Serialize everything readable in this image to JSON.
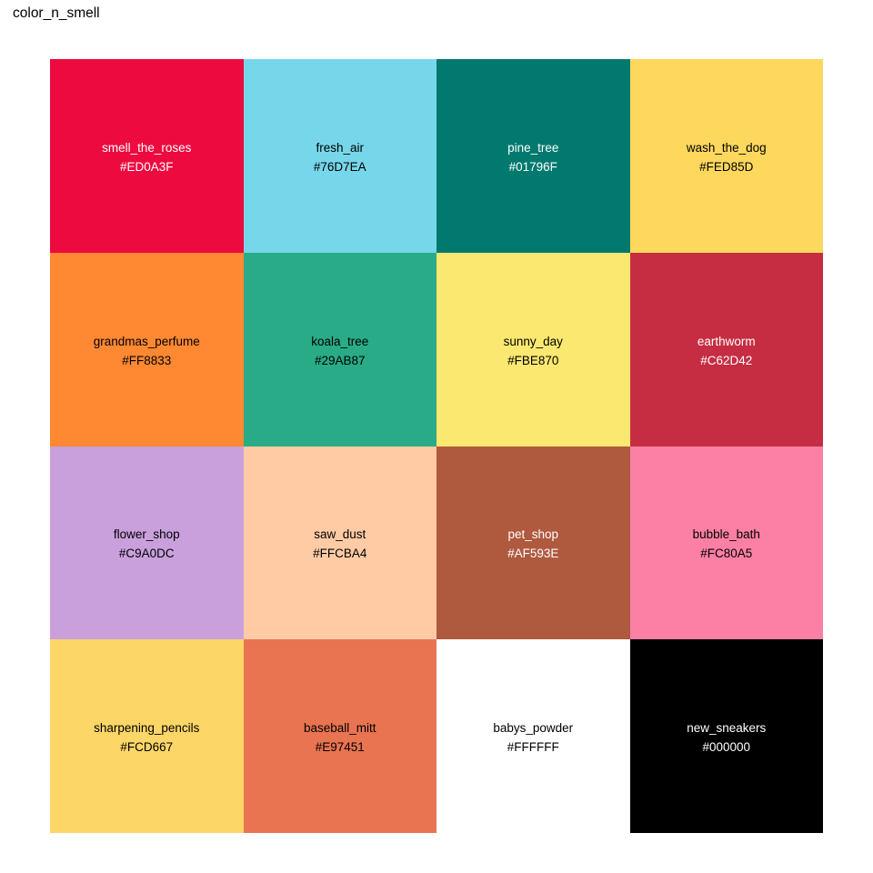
{
  "chart_data": {
    "type": "table",
    "title": "color_n_smell",
    "layout": {
      "rows": 4,
      "cols": 4,
      "legend": "none",
      "grid": "off"
    },
    "background_color": "#FFFFFF",
    "title_color": "#000000",
    "cells": [
      {
        "label": "smell_the_roses",
        "hex": "#ED0A3F",
        "text_color": "#FFFFFF"
      },
      {
        "label": "fresh_air",
        "hex": "#76D7EA",
        "text_color": "#000000"
      },
      {
        "label": "pine_tree",
        "hex": "#01796F",
        "text_color": "#FFFFFF"
      },
      {
        "label": "wash_the_dog",
        "hex": "#FED85D",
        "text_color": "#000000"
      },
      {
        "label": "grandmas_perfume",
        "hex": "#FF8833",
        "text_color": "#000000"
      },
      {
        "label": "koala_tree",
        "hex": "#29AB87",
        "text_color": "#000000"
      },
      {
        "label": "sunny_day",
        "hex": "#FBE870",
        "text_color": "#000000"
      },
      {
        "label": "earthworm",
        "hex": "#C62D42",
        "text_color": "#FFFFFF"
      },
      {
        "label": "flower_shop",
        "hex": "#C9A0DC",
        "text_color": "#000000"
      },
      {
        "label": "saw_dust",
        "hex": "#FFCBA4",
        "text_color": "#000000"
      },
      {
        "label": "pet_shop",
        "hex": "#AF593E",
        "text_color": "#FFFFFF"
      },
      {
        "label": "bubble_bath",
        "hex": "#FC80A5",
        "text_color": "#000000"
      },
      {
        "label": "sharpening_pencils",
        "hex": "#FCD667",
        "text_color": "#000000"
      },
      {
        "label": "baseball_mitt",
        "hex": "#E97451",
        "text_color": "#000000"
      },
      {
        "label": "babys_powder",
        "hex": "#FFFFFF",
        "text_color": "#000000"
      },
      {
        "label": "new_sneakers",
        "hex": "#000000",
        "text_color": "#FFFFFF"
      }
    ]
  }
}
